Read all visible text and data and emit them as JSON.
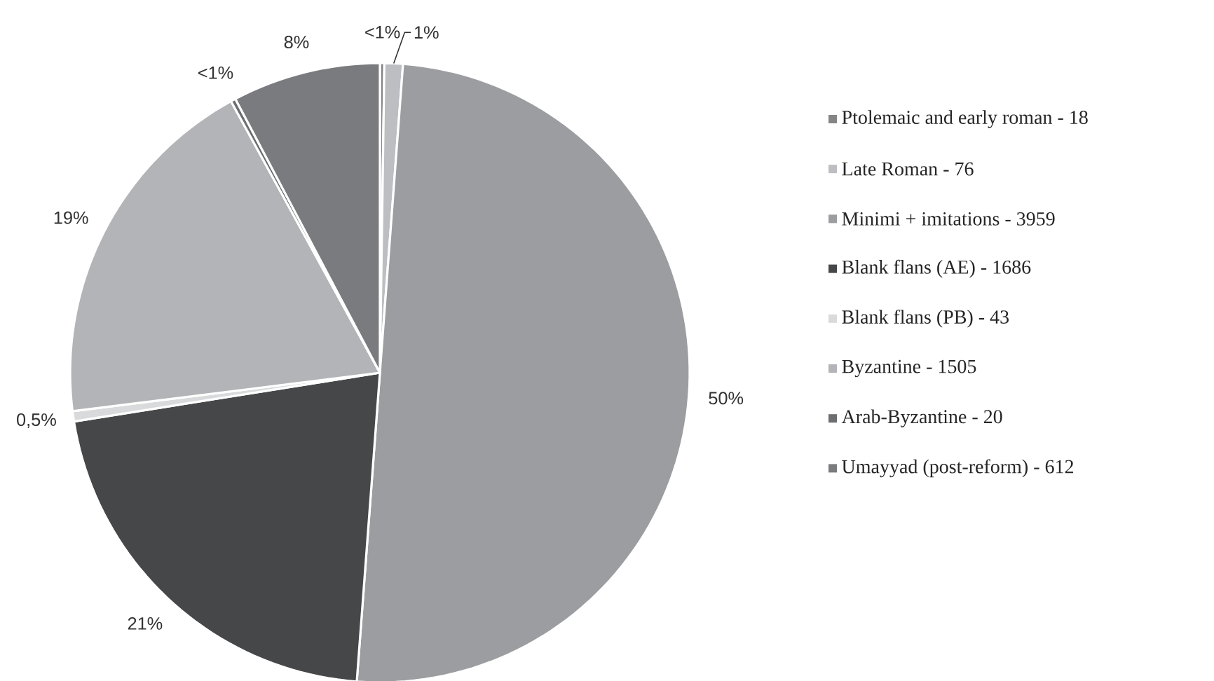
{
  "chart_data": {
    "type": "pie",
    "categories": [
      "Ptolemaic and early roman - 18",
      "Late Roman - 76",
      "Minimi + imitations - 3959",
      "Blank flans (AE) - 1686",
      "Blank flans (PB) - 43",
      "Byzantine - 1505",
      "Arab-Byzantine - 20",
      "Umayyad (post-reform) - 612"
    ],
    "values": [
      0.23,
      0.96,
      50.0,
      21.29,
      0.54,
      19.0,
      0.25,
      7.73
    ],
    "value_labels": [
      "<1%",
      "1%",
      "50%",
      "21%",
      "0,5%",
      "19%",
      "<1%",
      "8%"
    ],
    "colors": [
      "#858588",
      "#bdbec1",
      "#9c9da1",
      "#464749",
      "#d9dadb",
      "#b3b4b7",
      "#6d6e71",
      "#7a7b7e"
    ],
    "legend": "right"
  }
}
